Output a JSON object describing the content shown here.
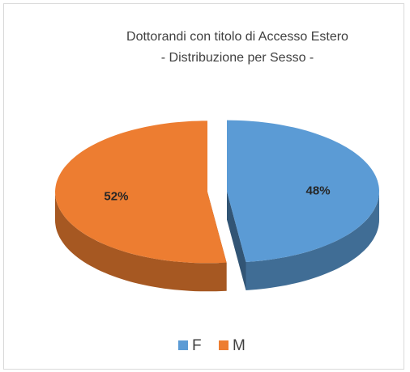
{
  "chart_data": {
    "type": "pie3d",
    "title": "Dottorandi con titolo di Accesso Estero",
    "subtitle": "- Distribuzione per Sesso -",
    "categories": [
      "F",
      "M"
    ],
    "values": [
      48,
      52
    ],
    "value_labels": [
      "48%",
      "52%"
    ],
    "colors": [
      "#5b9bd5",
      "#ed7d31"
    ],
    "legend": "bottom"
  }
}
